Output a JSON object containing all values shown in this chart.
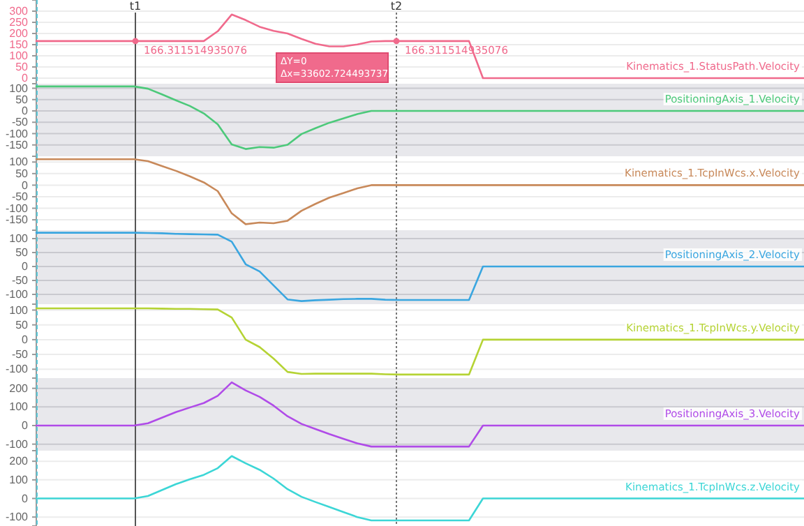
{
  "chart_data": [
    {
      "type": "line",
      "categories": [
        null,
        null,
        null,
        null,
        null,
        null,
        null,
        null,
        null,
        null,
        null,
        null,
        null,
        null,
        null,
        null,
        null,
        null,
        null,
        null,
        null,
        null,
        null,
        null,
        null,
        null,
        null,
        null,
        null,
        null,
        null,
        null,
        null,
        null,
        null,
        null,
        null,
        null,
        null,
        null,
        null,
        null,
        null,
        null,
        null,
        null,
        null,
        null,
        null,
        null,
        null,
        null,
        null,
        null,
        null,
        null
      ],
      "ylim": [
        -25,
        350
      ],
      "yticks": [
        0,
        50,
        100,
        150,
        200,
        250,
        300
      ],
      "tick_labels": "y",
      "grid": "y",
      "series": [
        {
          "name": "Kinematics_1.StatusPath.Velocity",
          "color": "#f06a8c",
          "values": [
            166,
            166,
            166,
            166,
            166,
            166,
            166,
            166,
            166,
            166,
            166,
            166,
            166,
            210,
            285,
            260,
            230,
            212,
            200,
            176,
            154,
            142,
            142,
            151,
            164,
            166,
            166,
            166,
            166,
            166,
            166,
            166,
            0,
            0,
            0,
            0,
            0,
            0,
            0,
            0,
            0,
            0,
            0,
            0,
            0,
            0,
            0,
            0,
            0,
            0,
            0,
            0,
            0,
            0,
            0,
            0
          ]
        }
      ],
      "annotations": [
        "t1",
        "t2",
        "166.311514935076",
        "166.311514935076",
        "ΔY=0",
        "Δx=33602.724493737"
      ]
    },
    {
      "type": "line",
      "categories": [
        null,
        null,
        null,
        null,
        null,
        null,
        null,
        null,
        null,
        null,
        null,
        null,
        null,
        null,
        null,
        null,
        null,
        null,
        null,
        null,
        null,
        null,
        null,
        null,
        null,
        null,
        null,
        null,
        null,
        null,
        null,
        null,
        null,
        null,
        null,
        null,
        null,
        null,
        null,
        null,
        null,
        null,
        null,
        null,
        null,
        null,
        null,
        null,
        null,
        null,
        null,
        null,
        null,
        null,
        null,
        null
      ],
      "ylim": [
        -200,
        120
      ],
      "yticks": [
        100,
        50,
        0,
        -50,
        -100,
        -150
      ],
      "tick_labels": "y",
      "grid": "y",
      "series": [
        {
          "name": "PositioningAxis_1.Velocity",
          "color": "#4cc97a",
          "values": [
            108,
            108,
            108,
            108,
            108,
            108,
            108,
            108,
            98,
            73,
            47,
            22,
            -11,
            -59,
            -148,
            -168,
            -159,
            -162,
            -149,
            -102,
            -76,
            -52,
            -33,
            -14,
            0,
            0,
            0,
            0,
            0,
            0,
            0,
            0,
            0,
            0,
            0,
            0,
            0,
            0,
            0,
            0,
            0,
            0,
            0,
            0,
            0,
            0,
            0,
            0,
            0,
            0,
            0,
            0,
            0,
            0,
            0,
            0
          ]
        }
      ]
    },
    {
      "type": "line",
      "categories": [
        null,
        null,
        null,
        null,
        null,
        null,
        null,
        null,
        null,
        null,
        null,
        null,
        null,
        null,
        null,
        null,
        null,
        null,
        null,
        null,
        null,
        null,
        null,
        null,
        null,
        null,
        null,
        null,
        null,
        null,
        null,
        null,
        null,
        null,
        null,
        null,
        null,
        null,
        null,
        null,
        null,
        null,
        null,
        null,
        null,
        null,
        null,
        null,
        null,
        null,
        null,
        null,
        null,
        null,
        null,
        null
      ],
      "ylim": [
        -195,
        125
      ],
      "yticks": [
        100,
        50,
        0,
        -50,
        -100,
        -150
      ],
      "tick_labels": "y",
      "grid": "y",
      "series": [
        {
          "name": "Kinematics_1.TcpInWcs.x.Velocity",
          "color": "#c8895a",
          "values": [
            112,
            112,
            112,
            112,
            112,
            112,
            112,
            112,
            104,
            83,
            62,
            38,
            12,
            -26,
            -122,
            -169,
            -162,
            -165,
            -154,
            -111,
            -81,
            -54,
            -34,
            -14,
            0,
            0,
            0,
            0,
            0,
            0,
            0,
            0,
            0,
            0,
            0,
            0,
            0,
            0,
            0,
            0,
            0,
            0,
            0,
            0,
            0,
            0,
            0,
            0,
            0,
            0,
            0,
            0,
            0,
            0,
            0,
            0
          ]
        }
      ]
    },
    {
      "type": "line",
      "categories": [
        null,
        null,
        null,
        null,
        null,
        null,
        null,
        null,
        null,
        null,
        null,
        null,
        null,
        null,
        null,
        null,
        null,
        null,
        null,
        null,
        null,
        null,
        null,
        null,
        null,
        null,
        null,
        null,
        null,
        null,
        null,
        null,
        null,
        null,
        null,
        null,
        null,
        null,
        null,
        null,
        null,
        null,
        null,
        null,
        null,
        null,
        null,
        null,
        null,
        null,
        null,
        null,
        null,
        null,
        null,
        null
      ],
      "ylim": [
        -135,
        130
      ],
      "yticks": [
        100,
        50,
        0,
        -50,
        -100
      ],
      "tick_labels": "y",
      "grid": "y",
      "series": [
        {
          "name": "PositioningAxis_2.Velocity",
          "color": "#3aa6e0",
          "values": [
            121,
            121,
            121,
            121,
            121,
            121,
            121,
            121,
            120,
            119,
            117,
            116,
            115,
            114,
            89,
            8,
            -18,
            -68,
            -118,
            -124,
            -121,
            -119,
            -117,
            -116,
            -116,
            -119,
            -120,
            -120,
            -120,
            -120,
            -120,
            -120,
            0,
            0,
            0,
            0,
            0,
            0,
            0,
            0,
            0,
            0,
            0,
            0,
            0,
            0,
            0,
            0,
            0,
            0,
            0,
            0,
            0,
            0,
            0,
            0
          ]
        }
      ]
    },
    {
      "type": "line",
      "categories": [
        null,
        null,
        null,
        null,
        null,
        null,
        null,
        null,
        null,
        null,
        null,
        null,
        null,
        null,
        null,
        null,
        null,
        null,
        null,
        null,
        null,
        null,
        null,
        null,
        null,
        null,
        null,
        null,
        null,
        null,
        null,
        null,
        null,
        null,
        null,
        null,
        null,
        null,
        null,
        null,
        null,
        null,
        null,
        null,
        null,
        null,
        null,
        null,
        null,
        null,
        null,
        null,
        null,
        null,
        null,
        null
      ],
      "ylim": [
        -130,
        120
      ],
      "yticks": [
        100,
        50,
        0,
        -50,
        -100
      ],
      "tick_labels": "y",
      "grid": "y",
      "series": [
        {
          "name": "Kinematics_1.TcpInWcs.y.Velocity",
          "color": "#b5d334",
          "values": [
            106,
            106,
            106,
            106,
            106,
            106,
            106,
            106,
            106,
            105,
            104,
            104,
            103,
            102,
            75,
            0,
            -25,
            -64,
            -109,
            -116,
            -115,
            -115,
            -115,
            -115,
            -115,
            -117,
            -118,
            -118,
            -118,
            -118,
            -118,
            -118,
            0,
            0,
            0,
            0,
            0,
            0,
            0,
            0,
            0,
            0,
            0,
            0,
            0,
            0,
            0,
            0,
            0,
            0,
            0,
            0,
            0,
            0,
            0,
            0
          ]
        }
      ]
    },
    {
      "type": "line",
      "categories": [
        null,
        null,
        null,
        null,
        null,
        null,
        null,
        null,
        null,
        null,
        null,
        null,
        null,
        null,
        null,
        null,
        null,
        null,
        null,
        null,
        null,
        null,
        null,
        null,
        null,
        null,
        null,
        null,
        null,
        null,
        null,
        null,
        null,
        null,
        null,
        null,
        null,
        null,
        null,
        null,
        null,
        null,
        null,
        null,
        null,
        null,
        null,
        null,
        null,
        null,
        null,
        null,
        null,
        null,
        null,
        null
      ],
      "ylim": [
        -135,
        255
      ],
      "yticks": [
        200,
        100,
        0,
        -100
      ],
      "tick_labels": "y",
      "grid": "y",
      "series": [
        {
          "name": "PositioningAxis_3.Velocity",
          "color": "#b04be8",
          "values": [
            0,
            0,
            0,
            0,
            0,
            0,
            0,
            0,
            12,
            42,
            72,
            97,
            121,
            160,
            232,
            189,
            154,
            107,
            50,
            9,
            -19,
            -46,
            -71,
            -96,
            -113,
            -113,
            -113,
            -113,
            -113,
            -113,
            -113,
            -113,
            0,
            0,
            0,
            0,
            0,
            0,
            0,
            0,
            0,
            0,
            0,
            0,
            0,
            0,
            0,
            0,
            0,
            0,
            0,
            0,
            0,
            0,
            0,
            0
          ]
        }
      ]
    },
    {
      "type": "line",
      "categories": [
        null,
        null,
        null,
        null,
        null,
        null,
        null,
        null,
        null,
        null,
        null,
        null,
        null,
        null,
        null,
        null,
        null,
        null,
        null,
        null,
        null,
        null,
        null,
        null,
        null,
        null,
        null,
        null,
        null,
        null,
        null,
        null,
        null,
        null,
        null,
        null,
        null,
        null,
        null,
        null,
        null,
        null,
        null,
        null,
        null,
        null,
        null,
        null,
        null,
        null,
        null,
        null,
        null,
        null,
        null,
        null
      ],
      "ylim": [
        -148,
        257
      ],
      "yticks": [
        200,
        100,
        0,
        -100
      ],
      "tick_labels": "y",
      "grid": "y",
      "series": [
        {
          "name": "Kinematics_1.TcpInWcs.z.Velocity",
          "color": "#3cd6d6",
          "values": [
            0,
            0,
            0,
            0,
            0,
            0,
            0,
            0,
            13,
            45,
            77,
            103,
            127,
            163,
            228,
            189,
            154,
            107,
            50,
            9,
            -19,
            -46,
            -73,
            -100,
            -118,
            -118,
            -118,
            -118,
            -118,
            -118,
            -118,
            -118,
            0,
            0,
            0,
            0,
            0,
            0,
            0,
            0,
            0,
            0,
            0,
            0,
            0,
            0,
            0,
            0,
            0,
            0,
            0,
            0,
            0,
            0,
            0,
            0
          ]
        }
      ]
    }
  ]
}
